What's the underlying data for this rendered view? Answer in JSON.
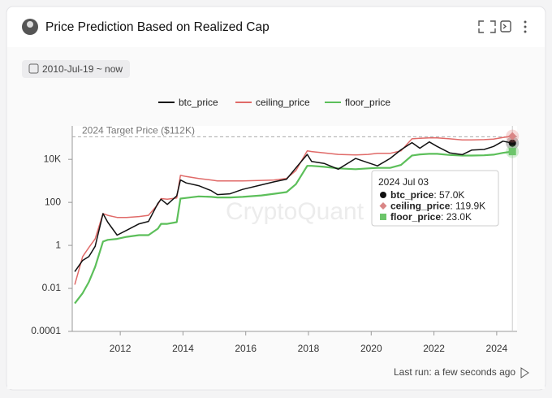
{
  "header": {
    "title": "Price Prediction Based on Realized Cap"
  },
  "filter": {
    "date_range": "2010-Jul-19 ~ now"
  },
  "chart_data": {
    "type": "line",
    "x": [
      2010.55,
      2010.8,
      2011.0,
      2011.2,
      2011.45,
      2011.6,
      2011.9,
      2012.2,
      2012.6,
      2012.9,
      2013.2,
      2013.3,
      2013.5,
      2013.8,
      2013.92,
      2014.1,
      2014.5,
      2014.9,
      2015.1,
      2015.5,
      2015.9,
      2016.5,
      2016.9,
      2017.3,
      2017.6,
      2017.96,
      2018.1,
      2018.5,
      2018.95,
      2019.5,
      2019.9,
      2020.2,
      2020.6,
      2020.95,
      2021.3,
      2021.55,
      2021.85,
      2022.1,
      2022.5,
      2022.9,
      2023.2,
      2023.6,
      2023.9,
      2024.2,
      2024.5
    ],
    "series": [
      {
        "name": "btc_price",
        "color": "#111111",
        "values": [
          0.06,
          0.2,
          0.3,
          0.9,
          30,
          12,
          3,
          5,
          10,
          13,
          90,
          140,
          80,
          200,
          1100,
          800,
          600,
          350,
          230,
          250,
          400,
          650,
          900,
          1200,
          4000,
          17000,
          8000,
          6500,
          3500,
          11000,
          7000,
          5000,
          11000,
          28000,
          60000,
          33000,
          65000,
          40000,
          20000,
          16500,
          27000,
          29000,
          40000,
          70000,
          57000
        ]
      },
      {
        "name": "ceiling_price",
        "color": "#e06a68",
        "values": [
          0.015,
          0.3,
          0.8,
          2,
          30,
          25,
          20,
          20,
          22,
          25,
          80,
          150,
          140,
          160,
          1800,
          1600,
          1300,
          1100,
          1000,
          1000,
          1000,
          1050,
          1100,
          1300,
          3000,
          25000,
          23000,
          20000,
          17000,
          16000,
          17000,
          19000,
          19000,
          25000,
          90000,
          95000,
          100000,
          100000,
          90000,
          80000,
          80000,
          83000,
          88000,
          105000,
          119900
        ]
      },
      {
        "name": "floor_price",
        "color": "#5cbf5a",
        "values": [
          0.002,
          0.006,
          0.02,
          0.1,
          1.5,
          1.8,
          2,
          2.5,
          3,
          3,
          6,
          10,
          10,
          12,
          150,
          160,
          190,
          180,
          170,
          170,
          180,
          210,
          250,
          300,
          700,
          5000,
          5000,
          4500,
          3800,
          3500,
          3800,
          4000,
          4000,
          5500,
          15000,
          17000,
          18000,
          18000,
          16000,
          15000,
          15000,
          15500,
          16500,
          20000,
          23000
        ]
      }
    ],
    "log_scale": true,
    "xlim": [
      2010.47,
      2024.65
    ],
    "xticks": [
      2012,
      2014,
      2016,
      2018,
      2020,
      2022,
      2024
    ],
    "ylim": [
      0.0001,
      360000
    ],
    "yticks": [
      0.0001,
      0.01,
      1,
      100,
      {
        "value": 10000,
        "label": "10K"
      }
    ],
    "annotation": {
      "text": "2024 Target Price ($112K)",
      "value": 112000
    },
    "tooltip": {
      "date": "2024 Jul 03",
      "values": [
        57000,
        119900,
        23000
      ],
      "value_labels": [
        "57.0K",
        "119.9K",
        "23.0K"
      ]
    },
    "watermark": "CryptoQuant"
  },
  "footer": {
    "last_run": "Last run: a few seconds ago"
  }
}
